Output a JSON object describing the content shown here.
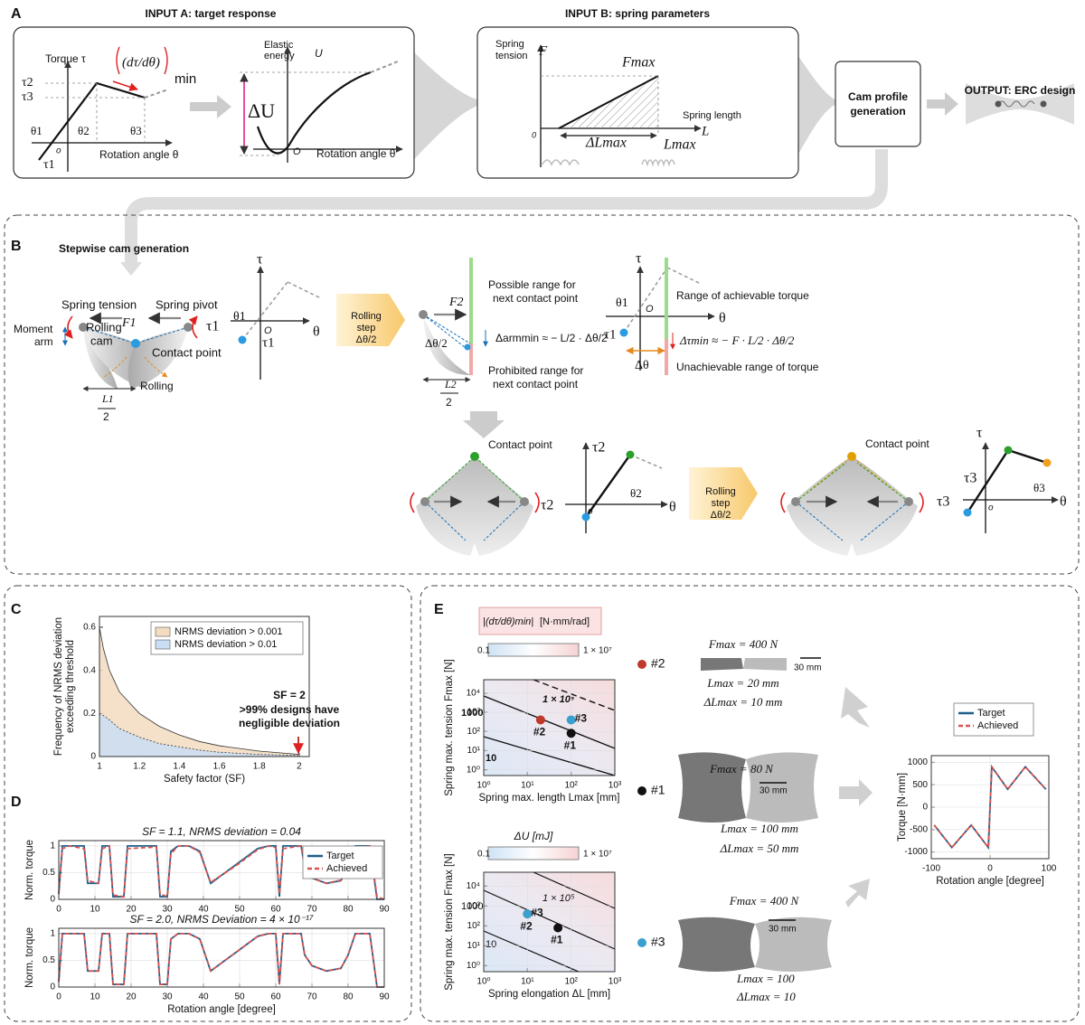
{
  "panel_a": {
    "texts": [
      "A",
      "INPUT A: target response",
      "INPUT B: spring parameters",
      "OUTPUT: ERC design",
      "Cam profile",
      "generation",
      "Torque τ",
      "τ2",
      "τ3",
      "τ1",
      "θ1",
      "θ2",
      "θ3",
      "o",
      "Rotation angle θ",
      "(dτ/dθ)",
      "min",
      "Elastic",
      "energy",
      "U",
      "ΔU",
      "O",
      "Rotation angle θ",
      "Spring",
      "tension",
      "F",
      "Fmax",
      "Spring length",
      "L",
      "0",
      "ΔLmax",
      "Lmax"
    ]
  },
  "panel_b": {
    "texts": [
      "B",
      "Stepwise cam generation",
      "Spring tension",
      "Spring pivot",
      "F1",
      "τ1",
      "Moment",
      "arm",
      "Rolling",
      "cam",
      "Contact point",
      "Rolling",
      "L1",
      "2",
      "τ",
      "θ1",
      "O",
      "θ",
      "τ1",
      "Rolling",
      "step",
      "Δθ/2",
      "F2",
      "Possible range for",
      "next contact point",
      "Δarmmin ≈ − L/2 · Δθ/2",
      "Δθ/2",
      "Prohibited range for",
      "next contact point",
      "L2",
      "2",
      "τ",
      "θ1",
      "O",
      "θ",
      "Range of achievable torque",
      "τ1",
      "Δτmin ≈ − F · L/2 · Δθ/2",
      "Δθ",
      "Unachievable range of torque",
      "Contact point",
      "τ2",
      "τ2",
      "θ2",
      "θ",
      "o",
      "Rolling",
      "step",
      "Δθ/2",
      "Contact point",
      "τ3",
      "τ3",
      "θ3",
      "θ",
      "o",
      "τ"
    ]
  },
  "panel_c": {
    "texts": [
      "C",
      "SF = 2",
      ">99% designs have",
      "negligible deviation"
    ],
    "chart": {
      "type": "area",
      "xlabel": "Safety factor (SF)",
      "ylabel": [
        "Frequency of NRMS deviation",
        "exceeding threshold"
      ],
      "xlim": [
        1,
        2.05
      ],
      "ylim": [
        0,
        0.65
      ],
      "xticks": [
        1,
        1.2,
        1.4,
        1.6,
        1.8,
        2
      ],
      "yticks": [
        0,
        0.2,
        0.4,
        0.6
      ],
      "legend": "upper right",
      "x": [
        1,
        1.02,
        1.05,
        1.1,
        1.2,
        1.3,
        1.4,
        1.5,
        1.6,
        1.8,
        2
      ],
      "series": [
        {
          "name": "NRMS deviation > 0.001",
          "color": "#f3dcc0",
          "values": [
            0.6,
            0.5,
            0.4,
            0.3,
            0.2,
            0.14,
            0.1,
            0.07,
            0.05,
            0.025,
            0.01
          ]
        },
        {
          "name": "NRMS deviation > 0.01",
          "color": "#c9ddf3",
          "values": [
            0.2,
            0.19,
            0.17,
            0.13,
            0.09,
            0.06,
            0.045,
            0.03,
            0.02,
            0.01,
            0.005
          ]
        }
      ]
    }
  },
  "panel_d": {
    "texts": [
      "D"
    ],
    "charts": [
      {
        "type": "line",
        "title": "SF = 1.1, NRMS deviation = 0.04",
        "ylabel": "Norm. torque",
        "xlim": [
          0,
          90
        ],
        "ylim": [
          0,
          1.1
        ],
        "xticks": [
          0,
          10,
          20,
          30,
          40,
          50,
          60,
          70,
          80,
          90
        ],
        "yticks": [
          0,
          0.5,
          1
        ],
        "legend": "upper right",
        "x": [
          0,
          1,
          3,
          7,
          8,
          11,
          12,
          14,
          15,
          18,
          19,
          27,
          28,
          30,
          31,
          33,
          36,
          39,
          41,
          42,
          49,
          55,
          58,
          60,
          61,
          62,
          67,
          68,
          70,
          74,
          78,
          80,
          82,
          86,
          88,
          90
        ],
        "series": [
          {
            "name": "Target",
            "color": "#1f5f8b",
            "values": [
              0.1,
              1,
              1,
              1,
              0.3,
              0.3,
              1,
              1,
              0.05,
              0.05,
              1,
              1,
              0.05,
              0.05,
              0.9,
              1,
              1,
              0.9,
              0.5,
              0.3,
              0.65,
              0.95,
              1,
              1,
              0.05,
              1,
              1,
              0.6,
              0.4,
              0.3,
              0.35,
              0.6,
              1,
              1,
              0,
              0
            ]
          },
          {
            "name": "Achieved",
            "color": "#d9534f",
            "dashed": true,
            "values": [
              0.12,
              0.95,
              1,
              0.95,
              0.35,
              0.3,
              0.95,
              1,
              0.08,
              0.05,
              0.95,
              0.98,
              0.1,
              0.05,
              0.85,
              1,
              1,
              0.88,
              0.5,
              0.32,
              0.63,
              0.93,
              1,
              0.97,
              0.1,
              0.95,
              1,
              0.62,
              0.4,
              0.3,
              0.36,
              0.58,
              0.97,
              1,
              0.05,
              0
            ]
          }
        ]
      },
      {
        "type": "line",
        "title": "SF = 2.0, NRMS Deviation = 4 × 10⁻¹⁷",
        "ylabel": "Norm. torque",
        "xlabel": "Rotation angle [degree]",
        "xlim": [
          0,
          90
        ],
        "ylim": [
          0,
          1.1
        ],
        "xticks": [
          0,
          10,
          20,
          30,
          40,
          50,
          60,
          70,
          80,
          90
        ],
        "yticks": [
          0,
          0.5,
          1
        ],
        "x": [
          0,
          1,
          3,
          7,
          8,
          11,
          12,
          14,
          15,
          18,
          19,
          27,
          28,
          30,
          31,
          33,
          36,
          39,
          41,
          42,
          49,
          55,
          58,
          60,
          61,
          62,
          67,
          68,
          70,
          74,
          78,
          80,
          82,
          86,
          88,
          90
        ],
        "series": [
          {
            "color": "#1f5f8b",
            "values": [
              0.1,
              1,
              1,
              1,
              0.3,
              0.3,
              1,
              1,
              0.05,
              0.05,
              1,
              1,
              0.05,
              0.05,
              0.9,
              1,
              1,
              0.9,
              0.5,
              0.3,
              0.65,
              0.95,
              1,
              1,
              0.05,
              1,
              1,
              0.6,
              0.4,
              0.3,
              0.35,
              0.6,
              1,
              1,
              0,
              0
            ]
          },
          {
            "color": "#d9534f",
            "dashed": true,
            "values": [
              0.1,
              1,
              1,
              1,
              0.3,
              0.3,
              1,
              1,
              0.05,
              0.05,
              1,
              1,
              0.05,
              0.05,
              0.9,
              1,
              1,
              0.9,
              0.5,
              0.3,
              0.65,
              0.95,
              1,
              1,
              0.05,
              1,
              1,
              0.6,
              0.4,
              0.3,
              0.35,
              0.6,
              1,
              1,
              0,
              0
            ]
          }
        ]
      }
    ]
  },
  "panel_e": {
    "texts": [
      "E",
      "|(dτ/dθ)min|",
      "[N·mm/rad]",
      "0.1",
      "1 × 10⁷",
      "ΔU [mJ]",
      "0.1",
      "1 × 10⁷",
      "1000",
      "10",
      "1 × 10⁵",
      "1000",
      "10",
      "1 × 10⁵",
      "#2",
      "Fmax = 400 N",
      "30 mm",
      "Lmax = 20 mm",
      "ΔLmax = 10 mm",
      "#1",
      "Fmax = 80 N",
      "30 mm",
      "Lmax = 100 mm",
      "ΔLmax = 50 mm",
      "#3",
      "Fmax = 400 N",
      "30 mm",
      "Lmax = 100",
      "ΔLmax = 10"
    ],
    "charts": [
      {
        "type": "scatter",
        "logx": true,
        "logy": true,
        "xlabel": "Spring max. length Lmax [mm]",
        "ylabel": "Spring max. tension Fmax [N]",
        "xlim": [
          1,
          1000
        ],
        "ylim": [
          0.5,
          50000
        ],
        "xticks": [
          {
            "value": 1,
            "label": "10⁰"
          },
          {
            "value": 10,
            "label": "10¹"
          },
          {
            "value": 100,
            "label": "10²"
          },
          {
            "value": 1000,
            "label": "10³"
          }
        ],
        "yticks": [
          {
            "value": 1,
            "label": "10⁰"
          },
          {
            "value": 10,
            "label": "10¹"
          },
          {
            "value": 100,
            "label": "10²"
          },
          {
            "value": 1000,
            "label": "10³"
          },
          {
            "value": 10000,
            "label": "10⁴"
          }
        ],
        "series": [
          {
            "name": "#2",
            "color": "#c0392b",
            "x": [
              20
            ],
            "values": [
              400
            ]
          },
          {
            "name": "#3",
            "color": "#3aa0d0",
            "x": [
              100
            ],
            "values": [
              400
            ]
          },
          {
            "name": "#1",
            "color": "#111111",
            "x": [
              100
            ],
            "values": [
              80
            ]
          }
        ]
      },
      {
        "type": "scatter",
        "logx": true,
        "logy": true,
        "xlabel": "Spring elongation ΔL [mm]",
        "ylabel": "Spring max. tension Fmax [N]",
        "xlim": [
          1,
          1000
        ],
        "ylim": [
          0.5,
          50000
        ],
        "xticks": [
          {
            "value": 1,
            "label": "10⁰"
          },
          {
            "value": 10,
            "label": "10¹"
          },
          {
            "value": 100,
            "label": "10²"
          },
          {
            "value": 1000,
            "label": "10³"
          }
        ],
        "yticks": [
          {
            "value": 1,
            "label": "10⁰"
          },
          {
            "value": 10,
            "label": "10¹"
          },
          {
            "value": 100,
            "label": "10²"
          },
          {
            "value": 1000,
            "label": "10³"
          },
          {
            "value": 10000,
            "label": "10⁴"
          }
        ],
        "series": [
          {
            "name": "#2",
            "color": "#c0392b",
            "x": [
              10
            ],
            "values": [
              400
            ]
          },
          {
            "name": "#3",
            "color": "#3aa0d0",
            "x": [
              10
            ],
            "values": [
              400
            ]
          },
          {
            "name": "#1",
            "color": "#111111",
            "x": [
              50
            ],
            "values": [
              80
            ]
          }
        ]
      },
      {
        "type": "line",
        "xlabel": "Rotation angle [degree]",
        "ylabel": "Torque [N·mm]",
        "xlim": [
          -100,
          100
        ],
        "ylim": [
          -1150,
          1150
        ],
        "xticks": [
          -100,
          0,
          100
        ],
        "yticks": [
          -1000,
          -500,
          0,
          500,
          1000
        ],
        "legend": "above",
        "x": [
          -95,
          -65,
          -32,
          -3,
          -3,
          3,
          30,
          60,
          95
        ],
        "series": [
          {
            "name": "Target",
            "color": "#1f5f8b",
            "values": [
              -400,
              -900,
              -400,
              -900,
              -900,
              900,
              400,
              900,
              400
            ]
          },
          {
            "name": "Achieved",
            "color": "#d9534f",
            "dashed": true,
            "values": [
              -400,
              -900,
              -400,
              -900,
              -900,
              900,
              400,
              900,
              400
            ]
          }
        ]
      }
    ]
  }
}
